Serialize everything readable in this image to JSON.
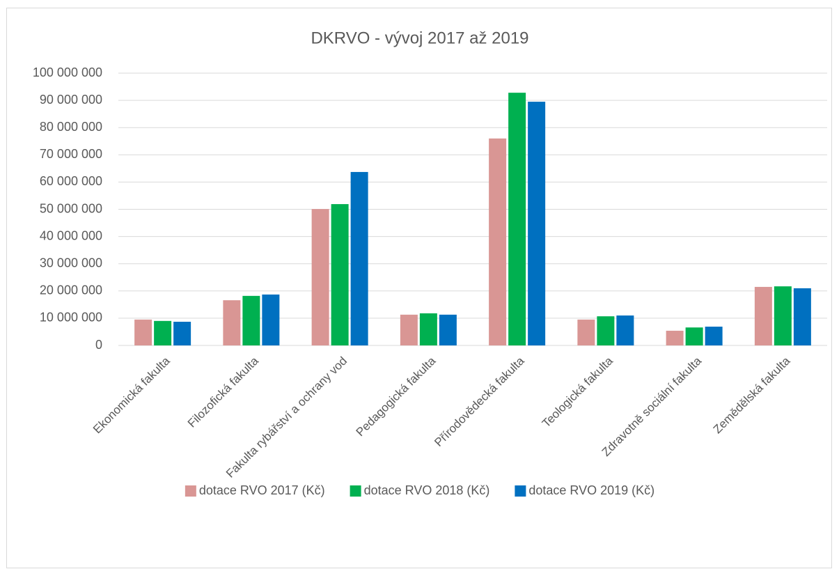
{
  "chart_data": {
    "type": "bar",
    "title": "DKRVO - vývoj 2017 až 2019",
    "categories": [
      "Ekonomická fakulta",
      "Filozofická fakulta",
      "Fakulta rybářství a ochrany vod",
      "Pedagogická fakulta",
      "Přírodovědecká fakulta",
      "Teologická fakulta",
      "Zdravotně sociální fakulta",
      "Zemědělská fakulta"
    ],
    "series": [
      {
        "name": "dotace RVO 2017 (Kč)",
        "color": "#d99694",
        "values": [
          9500000,
          16600000,
          50100000,
          11300000,
          76000000,
          9500000,
          5400000,
          21500000
        ]
      },
      {
        "name": "dotace RVO 2018 (Kč)",
        "color": "#00b050",
        "values": [
          9000000,
          18200000,
          51900000,
          11800000,
          92800000,
          10700000,
          6600000,
          21700000
        ]
      },
      {
        "name": "dotace RVO 2019 (Kč)",
        "color": "#0070c0",
        "values": [
          8700000,
          18700000,
          63700000,
          11300000,
          89500000,
          11000000,
          6900000,
          21000000
        ]
      }
    ],
    "ylim": [
      0,
      100000000
    ],
    "yticks": [
      0,
      {
        "value": 10000000,
        "label": "10 000 000"
      },
      {
        "value": 20000000,
        "label": "20 000 000"
      },
      {
        "value": 30000000,
        "label": "30 000 000"
      },
      {
        "value": 40000000,
        "label": "40 000 000"
      },
      {
        "value": 50000000,
        "label": "50 000 000"
      },
      {
        "value": 60000000,
        "label": "60 000 000"
      },
      {
        "value": 70000000,
        "label": "70 000 000"
      },
      {
        "value": 80000000,
        "label": "80 000 000"
      },
      {
        "value": 90000000,
        "label": "90 000 000"
      },
      {
        "value": 100000000,
        "label": "100 000 000"
      }
    ],
    "grid": true,
    "legend": "bottom"
  }
}
